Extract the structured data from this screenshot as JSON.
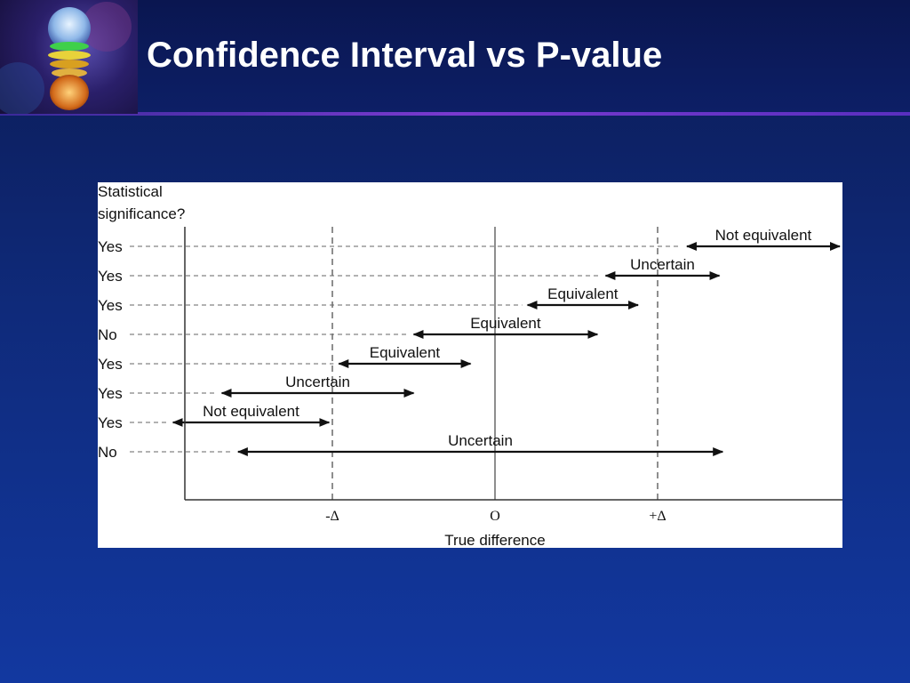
{
  "slide": {
    "title": "Confidence Interval vs P-value"
  },
  "figure": {
    "y_heading_line1": "Statistical",
    "y_heading_line2": "significance?",
    "x_axis_label": "True difference",
    "ticks": [
      {
        "label": "-Δ",
        "value": -1
      },
      {
        "label": "O",
        "value": 0
      },
      {
        "label": "+Δ",
        "value": 1
      }
    ],
    "rows": [
      {
        "significance": "Yes",
        "interval_label": "Not equivalent",
        "low": 1.18,
        "high": 2.12
      },
      {
        "significance": "Yes",
        "interval_label": "Uncertain",
        "low": 0.68,
        "high": 1.38
      },
      {
        "significance": "Yes",
        "interval_label": "Equivalent",
        "low": 0.2,
        "high": 0.88
      },
      {
        "significance": "No",
        "interval_label": "Equivalent",
        "low": -0.5,
        "high": 0.63
      },
      {
        "significance": "Yes",
        "interval_label": "Equivalent",
        "low": -0.96,
        "high": -0.15
      },
      {
        "significance": "Yes",
        "interval_label": "Uncertain",
        "low": -1.68,
        "high": -0.5
      },
      {
        "significance": "Yes",
        "interval_label": "Not equivalent",
        "low": -1.98,
        "high": -1.02
      },
      {
        "significance": "No",
        "interval_label": "Uncertain",
        "low": -1.58,
        "high": 1.4
      }
    ]
  },
  "colors": {
    "background": "#0f2a7a",
    "title_text": "#ffffff",
    "accent_rule": "#7a3ad0",
    "figure_bg": "#ffffff",
    "ink": "#111111"
  }
}
